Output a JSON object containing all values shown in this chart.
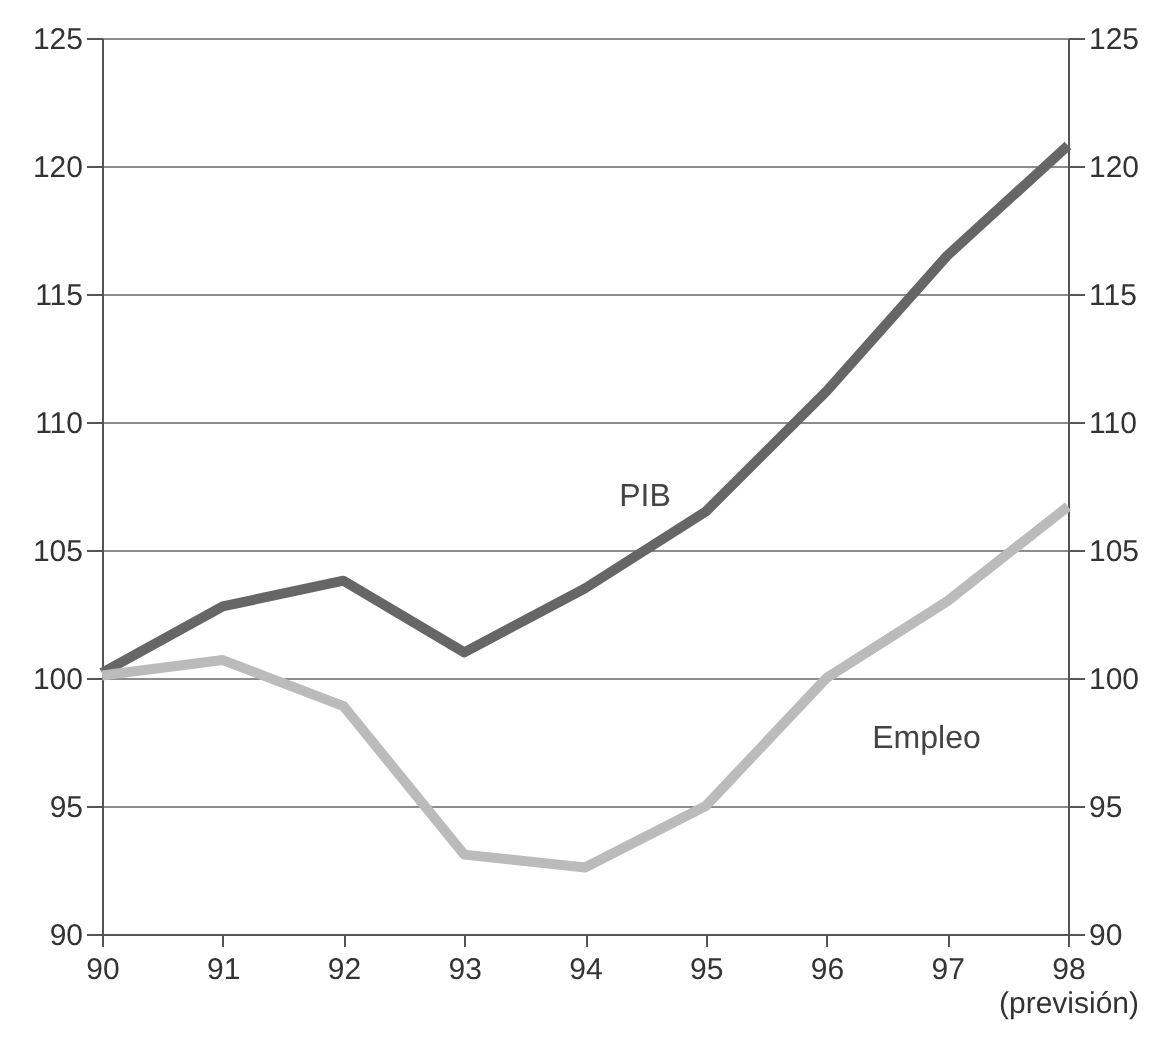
{
  "chart_data": {
    "type": "line",
    "categories": [
      "90",
      "91",
      "92",
      "93",
      "94",
      "95",
      "96",
      "97",
      "98\n(previsión)"
    ],
    "series": [
      {
        "name": "PIB",
        "color": "#666666",
        "values": [
          100.2,
          102.8,
          103.8,
          101.0,
          103.5,
          106.5,
          111.2,
          116.5,
          120.8
        ]
      },
      {
        "name": "Empleo",
        "color": "#bbbbbb",
        "values": [
          100.1,
          100.7,
          98.9,
          93.1,
          92.6,
          95.0,
          100.0,
          103.0,
          106.7
        ]
      }
    ],
    "ylim": [
      90,
      125
    ],
    "yticks": [
      90,
      95,
      100,
      105,
      110,
      115,
      120,
      125
    ],
    "y2lim": [
      90,
      125
    ],
    "y2ticks": [
      90,
      95,
      100,
      105,
      110,
      115,
      120,
      125
    ],
    "grid": "y",
    "marker": "none",
    "line_style": "solid"
  }
}
